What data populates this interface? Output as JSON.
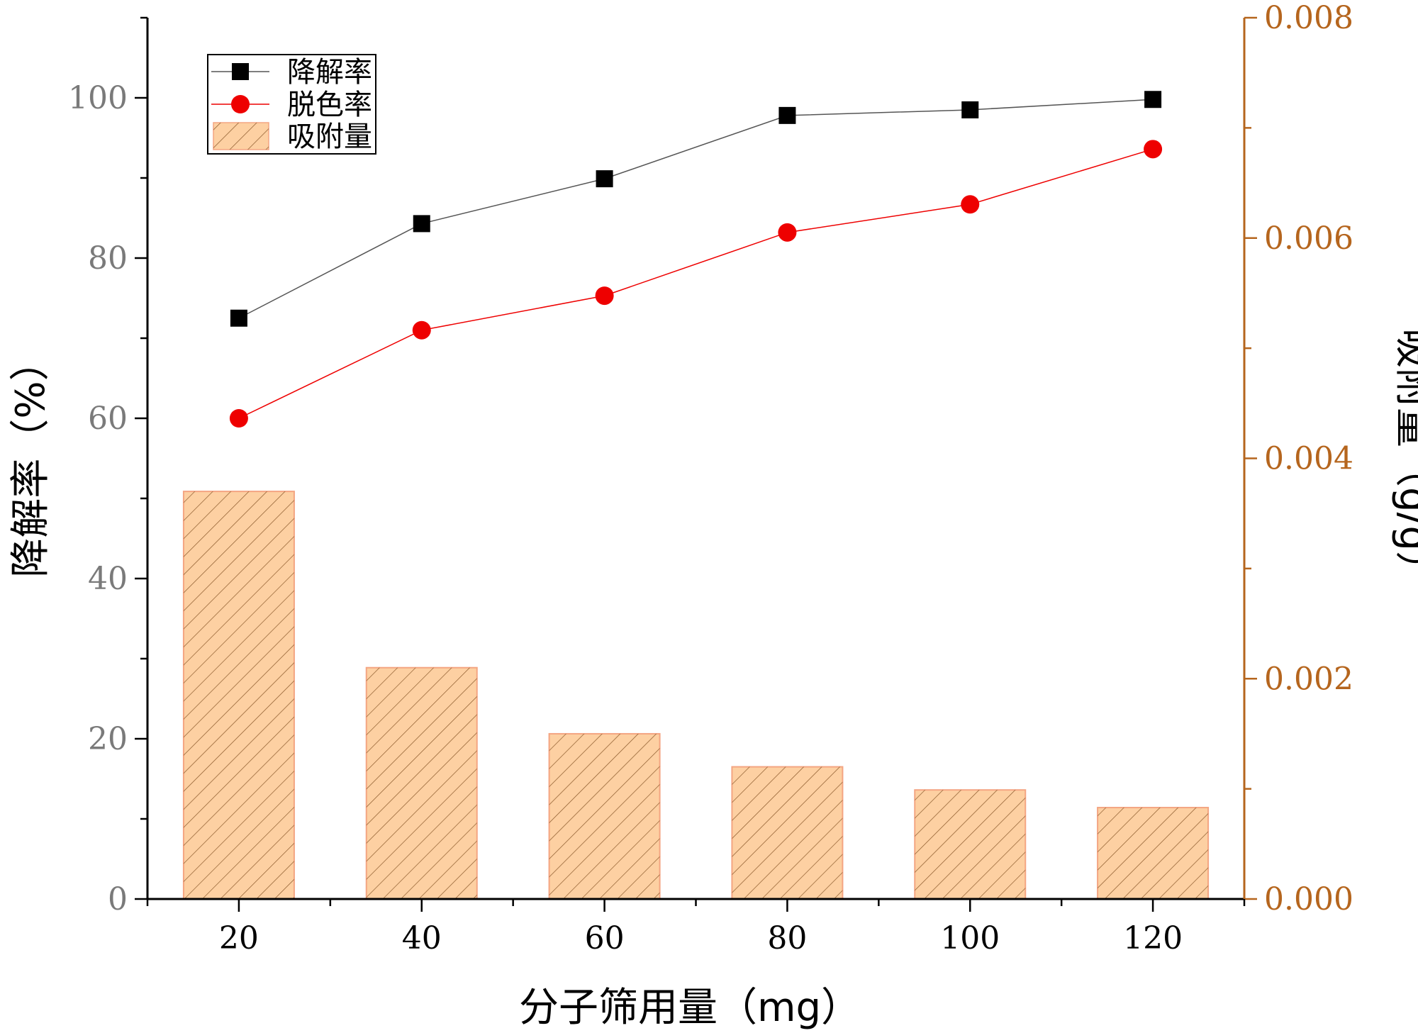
{
  "colors": {
    "left_axis": "#000000",
    "left_tick_text": "#7a7a7a",
    "right_axis": "#b5651d",
    "right_tick_text": "#b5651d",
    "series_degradation": "#000000",
    "series_degradation_line": "#555555",
    "series_decolor": "#ee0000",
    "bar_fill": "#fdd0a2",
    "bar_stroke": "#f4a582",
    "bar_hatch": "#8b5a2b"
  },
  "chart_data": {
    "type": "bar",
    "title": "",
    "xlabel": "分子筛用量（mg）",
    "ylabel_left": "降解率（%）",
    "ylabel_right": "吸附量（g/g）",
    "x_categories": [
      20,
      40,
      60,
      80,
      100,
      120
    ],
    "xlim": [
      10,
      130
    ],
    "ylim_left": [
      0,
      110
    ],
    "ylim_right": [
      0,
      0.008
    ],
    "left_ticks": [
      0,
      20,
      40,
      60,
      80,
      100
    ],
    "left_tick_labels": [
      "0",
      "20",
      "40",
      "60",
      "80",
      "100"
    ],
    "right_ticks": [
      0,
      0.002,
      0.004,
      0.006,
      0.008
    ],
    "right_tick_labels": [
      "0.000",
      "0.002",
      "0.004",
      "0.006",
      "0.008"
    ],
    "x_tick_labels": [
      "20",
      "40",
      "60",
      "80",
      "100",
      "120"
    ],
    "series": [
      {
        "name": "降解率",
        "type": "line",
        "axis": "left",
        "marker": "square",
        "values": [
          72.5,
          84.3,
          89.9,
          97.8,
          98.5,
          99.8
        ]
      },
      {
        "name": "脱色率",
        "type": "line",
        "axis": "left",
        "marker": "circle",
        "values": [
          60.0,
          71.0,
          75.3,
          83.2,
          86.7,
          93.6
        ]
      },
      {
        "name": "吸附量",
        "type": "bar",
        "axis": "right",
        "pattern": "hatch",
        "values": [
          0.0037,
          0.0021,
          0.0015,
          0.0012,
          0.00099,
          0.00083
        ]
      }
    ],
    "legend": {
      "position": "top-left",
      "entries": [
        "降解率",
        "脱色率",
        "吸附量"
      ]
    },
    "grid": false
  }
}
